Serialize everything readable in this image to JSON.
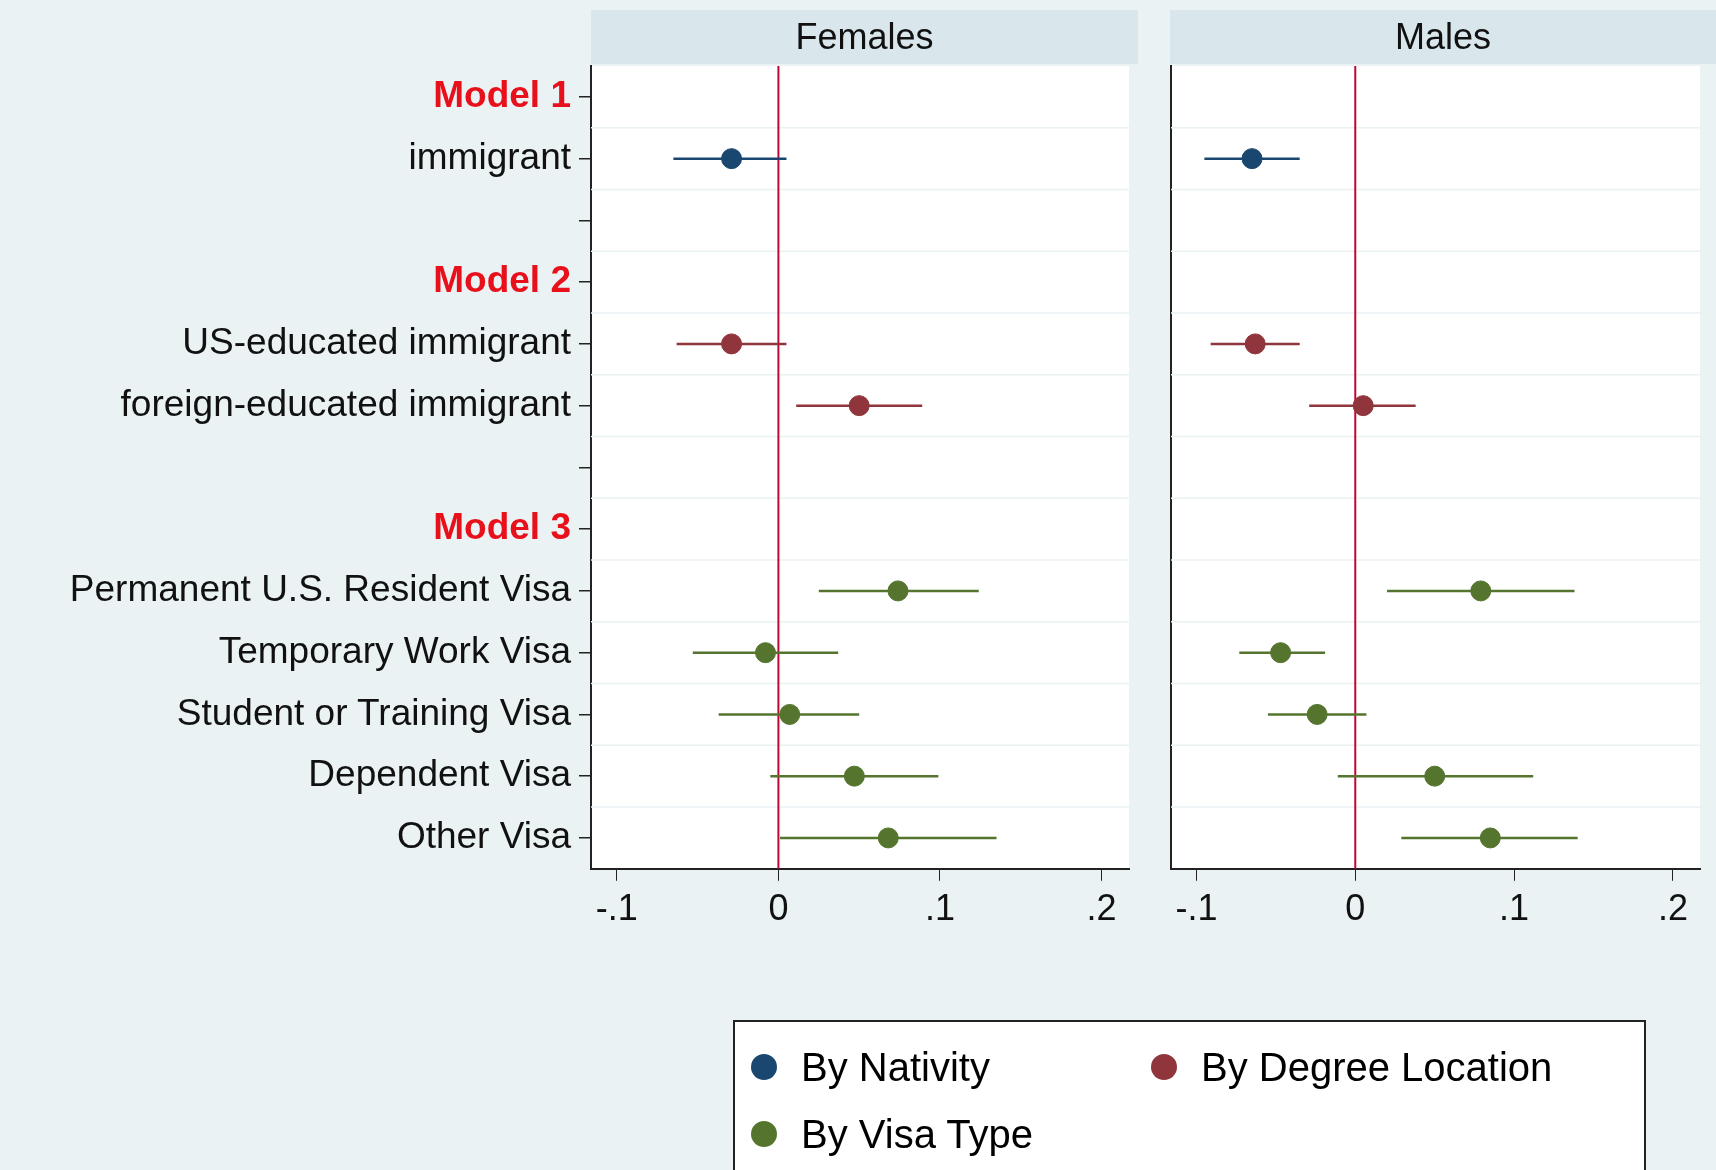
{
  "chart_data": [
    {
      "type": "scatter",
      "title": "Females",
      "orientation": "horizontal",
      "categories": [
        "Model 1",
        "immigrant",
        null,
        "Model 2",
        "US-educated immigrant",
        "foreign-educated immigrant",
        null,
        "Model 3",
        "Permanent U.S. Resident Visa",
        "Temporary Work Visa",
        "Student or Training Visa",
        "Dependent Visa",
        "Other Visa"
      ],
      "series": [
        {
          "name": "By Nativity",
          "color": "#1a476f",
          "values": [
            null,
            -0.029,
            null,
            null,
            null,
            null,
            null,
            null,
            null,
            null,
            null,
            null,
            null
          ],
          "errors": [
            null,
            [
              -0.065,
              0.005
            ],
            null,
            null,
            null,
            null,
            null,
            null,
            null,
            null,
            null,
            null,
            null
          ]
        },
        {
          "name": "By Degree Location",
          "color": "#90353b",
          "values": [
            null,
            null,
            null,
            null,
            -0.029,
            0.05,
            null,
            null,
            null,
            null,
            null,
            null,
            null
          ],
          "errors": [
            null,
            null,
            null,
            null,
            [
              -0.063,
              0.005
            ],
            [
              0.011,
              0.089
            ],
            null,
            null,
            null,
            null,
            null,
            null,
            null
          ]
        },
        {
          "name": "By Visa Type",
          "color": "#55752f",
          "values": [
            null,
            null,
            null,
            null,
            null,
            null,
            null,
            null,
            0.074,
            -0.008,
            0.007,
            0.047,
            0.068
          ],
          "errors": [
            null,
            null,
            null,
            null,
            null,
            null,
            null,
            null,
            [
              0.025,
              0.124
            ],
            [
              -0.053,
              0.037
            ],
            [
              -0.037,
              0.05
            ],
            [
              -0.005,
              0.099
            ],
            [
              0.001,
              0.135
            ]
          ]
        }
      ],
      "xlim": [
        -0.116,
        0.217
      ],
      "xticks": [
        {
          "value": -0.1,
          "label": "-.1"
        },
        0,
        {
          "value": 0.1,
          "label": ".1"
        },
        {
          "value": 0.2,
          "label": ".2"
        }
      ],
      "ref_lines": [
        {
          "axis": "x",
          "value": 0,
          "color": "#c10534"
        }
      ],
      "grid": "y",
      "marker": "circle",
      "legend": "bottom"
    },
    {
      "type": "scatter",
      "title": "Males",
      "orientation": "horizontal",
      "categories": [
        null,
        null,
        null,
        null,
        null,
        null,
        null,
        null,
        null,
        null,
        null,
        null,
        null
      ],
      "series": [
        {
          "color": "#1a476f",
          "values": [
            null,
            -0.065,
            null,
            null,
            null,
            null,
            null,
            null,
            null,
            null,
            null,
            null,
            null
          ],
          "errors": [
            null,
            [
              -0.095,
              -0.035
            ],
            null,
            null,
            null,
            null,
            null,
            null,
            null,
            null,
            null,
            null,
            null
          ]
        },
        {
          "color": "#90353b",
          "values": [
            null,
            null,
            null,
            null,
            -0.063,
            0.005,
            null,
            null,
            null,
            null,
            null,
            null,
            null
          ],
          "errors": [
            null,
            null,
            null,
            null,
            [
              -0.091,
              -0.035
            ],
            [
              -0.029,
              0.038
            ],
            null,
            null,
            null,
            null,
            null,
            null,
            null
          ]
        },
        {
          "color": "#55752f",
          "values": [
            null,
            null,
            null,
            null,
            null,
            null,
            null,
            null,
            0.079,
            -0.047,
            -0.024,
            0.05,
            0.085
          ],
          "errors": [
            null,
            null,
            null,
            null,
            null,
            null,
            null,
            null,
            [
              0.02,
              0.138
            ],
            [
              -0.073,
              -0.019
            ],
            [
              -0.055,
              0.007
            ],
            [
              -0.011,
              0.112
            ],
            [
              0.029,
              0.14
            ]
          ]
        }
      ],
      "xlim": [
        -0.116,
        0.217
      ],
      "xticks": [
        {
          "value": -0.1,
          "label": "-.1"
        },
        0,
        {
          "value": 0.1,
          "label": ".1"
        },
        {
          "value": 0.2,
          "label": ".2"
        }
      ],
      "ref_lines": [
        {
          "axis": "x",
          "value": 0,
          "color": "#c10534"
        }
      ],
      "grid": "y",
      "marker": "circle",
      "tick_labels": "x"
    }
  ]
}
